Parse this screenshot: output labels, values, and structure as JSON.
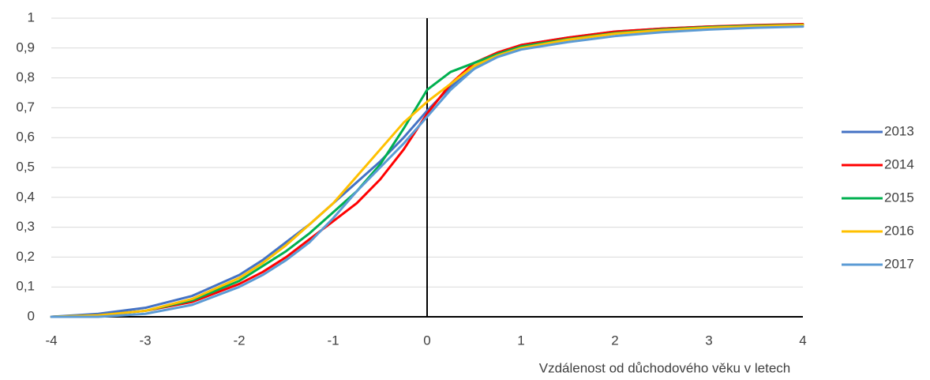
{
  "chart_data": {
    "type": "line",
    "x_label": "Vzdálenost od důchodového věku v letech",
    "x": [
      -4,
      -3.5,
      -3,
      -2.5,
      -2,
      -1.75,
      -1.5,
      -1.25,
      -1,
      -0.75,
      -0.5,
      -0.25,
      0,
      0.25,
      0.5,
      0.75,
      1,
      1.5,
      2,
      2.5,
      3,
      3.5,
      4
    ],
    "series": [
      {
        "name": "2013",
        "color": "#4472c4",
        "values": [
          0,
          0.01,
          0.03,
          0.07,
          0.14,
          0.19,
          0.25,
          0.31,
          0.38,
          0.45,
          0.52,
          0.6,
          0.69,
          0.77,
          0.83,
          0.88,
          0.91,
          0.935,
          0.955,
          0.965,
          0.972,
          0.976,
          0.978
        ]
      },
      {
        "name": "2014",
        "color": "#ff0000",
        "values": [
          0,
          0.005,
          0.02,
          0.05,
          0.11,
          0.15,
          0.2,
          0.26,
          0.32,
          0.38,
          0.46,
          0.56,
          0.68,
          0.78,
          0.85,
          0.885,
          0.91,
          0.935,
          0.955,
          0.965,
          0.972,
          0.977,
          0.98
        ]
      },
      {
        "name": "2015",
        "color": "#00b050",
        "values": [
          0,
          0.005,
          0.02,
          0.055,
          0.12,
          0.17,
          0.22,
          0.28,
          0.35,
          0.42,
          0.51,
          0.63,
          0.76,
          0.82,
          0.85,
          0.88,
          0.905,
          0.93,
          0.95,
          0.962,
          0.97,
          0.975,
          0.978
        ]
      },
      {
        "name": "2016",
        "color": "#ffc000",
        "values": [
          0,
          0.005,
          0.02,
          0.06,
          0.13,
          0.18,
          0.24,
          0.31,
          0.38,
          0.47,
          0.56,
          0.65,
          0.72,
          0.78,
          0.84,
          0.875,
          0.9,
          0.928,
          0.948,
          0.96,
          0.968,
          0.973,
          0.977
        ]
      },
      {
        "name": "2017",
        "color": "#5b9bd5",
        "values": [
          0,
          0,
          0.01,
          0.04,
          0.1,
          0.14,
          0.19,
          0.25,
          0.33,
          0.42,
          0.5,
          0.58,
          0.67,
          0.76,
          0.83,
          0.87,
          0.895,
          0.92,
          0.94,
          0.953,
          0.962,
          0.968,
          0.972
        ]
      }
    ],
    "xlim": [
      -4,
      4
    ],
    "xticks": [
      -4,
      -3,
      -2,
      -1,
      0,
      1,
      2,
      3,
      4
    ],
    "ylim": [
      0,
      1
    ],
    "yticks": [
      0,
      {
        "value": 0.1,
        "label": "0,1"
      },
      {
        "value": 0.2,
        "label": "0,2"
      },
      {
        "value": 0.3,
        "label": "0,3"
      },
      {
        "value": 0.4,
        "label": "0,4"
      },
      {
        "value": 0.5,
        "label": "0,5"
      },
      {
        "value": 0.6,
        "label": "0,6"
      },
      {
        "value": 0.7,
        "label": "0,7"
      },
      {
        "value": 0.8,
        "label": "0,8"
      },
      {
        "value": 0.9,
        "label": "0,9"
      },
      1
    ],
    "grid": true,
    "legend": "right"
  }
}
